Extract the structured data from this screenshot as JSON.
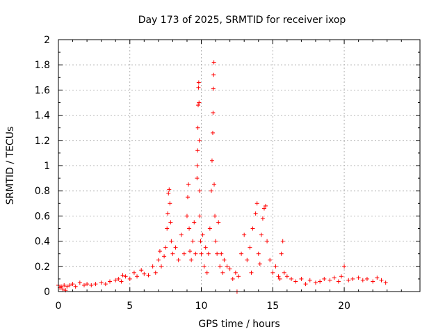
{
  "chart_data": {
    "type": "scatter",
    "title": "Day 173 of 2025, SRMTID for receiver ixop",
    "xlabel": "GPS time / hours",
    "ylabel": "SRMTID / TECUs",
    "xlim": [
      0,
      25.3
    ],
    "ylim": [
      0,
      2
    ],
    "xticks": [
      0,
      5,
      10,
      15,
      20
    ],
    "xtick_labels": [
      "0",
      "5",
      "10",
      "15",
      "20"
    ],
    "yticks": [
      0,
      0.2,
      0.4,
      0.6,
      0.8,
      1,
      1.2,
      1.4,
      1.6,
      1.8,
      2
    ],
    "ytick_labels": [
      "0",
      "0.2",
      "0.4",
      "0.6",
      "0.8",
      "1",
      "1.2",
      "1.4",
      "1.6",
      "1.8",
      "2"
    ],
    "grid": true,
    "marker": "+",
    "color": "#ff0000",
    "series": [
      {
        "name": "SRMTID",
        "x": [
          0.0,
          0.1,
          0.2,
          0.3,
          0.4,
          0.5,
          0.6,
          0.8,
          1.0,
          1.2,
          1.5,
          1.8,
          2.0,
          2.3,
          2.6,
          3.0,
          3.3,
          3.6,
          4.0,
          4.2,
          4.4,
          4.5,
          4.7,
          5.0,
          5.3,
          5.5,
          5.8,
          6.0,
          6.3,
          6.6,
          6.8,
          7.0,
          7.1,
          7.2,
          7.4,
          7.5,
          7.6,
          7.65,
          7.7,
          7.75,
          7.8,
          7.85,
          7.9,
          8.0,
          8.2,
          8.4,
          8.6,
          8.8,
          9.0,
          9.05,
          9.1,
          9.15,
          9.2,
          9.3,
          9.4,
          9.5,
          9.6,
          9.7,
          9.72,
          9.74,
          9.76,
          9.78,
          9.8,
          9.82,
          9.84,
          9.86,
          9.88,
          9.9,
          9.95,
          10.0,
          10.1,
          10.2,
          10.3,
          10.4,
          10.5,
          10.6,
          10.7,
          10.75,
          10.8,
          10.82,
          10.84,
          10.86,
          10.88,
          10.9,
          10.95,
          11.0,
          11.1,
          11.2,
          11.3,
          11.4,
          11.5,
          11.6,
          11.8,
          12.0,
          12.2,
          12.4,
          12.5,
          12.6,
          12.8,
          13.0,
          13.2,
          13.4,
          13.5,
          13.6,
          13.8,
          13.9,
          14.0,
          14.1,
          14.2,
          14.3,
          14.4,
          14.5,
          14.6,
          14.8,
          15.0,
          15.2,
          15.4,
          15.5,
          15.6,
          15.7,
          15.8,
          16.0,
          16.3,
          16.6,
          17.0,
          17.3,
          17.6,
          18.0,
          18.3,
          18.6,
          19.0,
          19.3,
          19.6,
          19.8,
          20.0,
          20.3,
          20.6,
          21.0,
          21.3,
          21.6,
          22.0,
          22.3,
          22.6,
          22.9
        ],
        "y": [
          0.05,
          0.03,
          0.04,
          0.02,
          0.05,
          0.01,
          0.04,
          0.05,
          0.06,
          0.04,
          0.07,
          0.05,
          0.06,
          0.05,
          0.06,
          0.07,
          0.06,
          0.08,
          0.09,
          0.1,
          0.08,
          0.13,
          0.12,
          0.1,
          0.15,
          0.12,
          0.17,
          0.14,
          0.13,
          0.2,
          0.15,
          0.25,
          0.32,
          0.2,
          0.28,
          0.35,
          0.5,
          0.62,
          0.78,
          0.81,
          0.7,
          0.55,
          0.4,
          0.3,
          0.35,
          0.25,
          0.45,
          0.3,
          0.6,
          0.75,
          0.85,
          0.5,
          0.32,
          0.25,
          0.4,
          0.55,
          0.3,
          0.9,
          1.0,
          1.12,
          1.3,
          1.48,
          1.62,
          1.66,
          1.5,
          1.2,
          0.8,
          0.6,
          0.4,
          0.3,
          0.45,
          0.2,
          0.35,
          0.15,
          0.3,
          0.5,
          0.8,
          1.04,
          1.26,
          1.42,
          1.61,
          1.72,
          1.82,
          0.85,
          0.6,
          0.4,
          0.3,
          0.55,
          0.2,
          0.3,
          0.15,
          0.25,
          0.2,
          0.18,
          0.1,
          0.15,
          0.0,
          0.12,
          0.3,
          0.45,
          0.25,
          0.35,
          0.15,
          0.5,
          0.62,
          0.7,
          0.3,
          0.22,
          0.45,
          0.58,
          0.66,
          0.68,
          0.4,
          0.25,
          0.15,
          0.2,
          0.12,
          0.1,
          0.3,
          0.4,
          0.15,
          0.12,
          0.1,
          0.08,
          0.1,
          0.06,
          0.09,
          0.07,
          0.08,
          0.1,
          0.09,
          0.11,
          0.08,
          0.12,
          0.2,
          0.09,
          0.1,
          0.11,
          0.09,
          0.1,
          0.08,
          0.11,
          0.09,
          0.07
        ]
      }
    ]
  }
}
